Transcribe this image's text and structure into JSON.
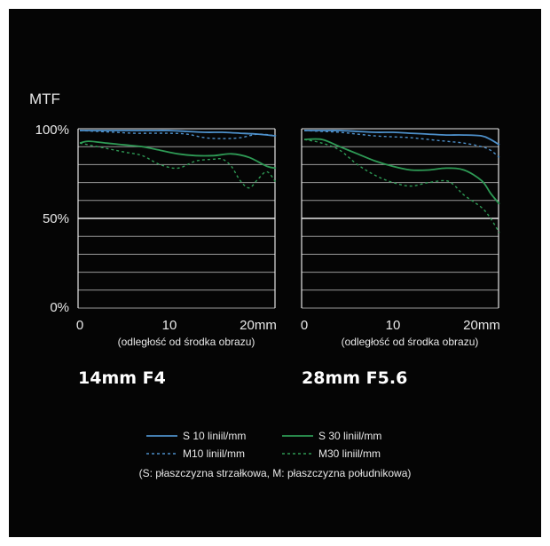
{
  "chart_data": [
    {
      "type": "line",
      "title": "14mm F4",
      "ylabel": "MTF",
      "xlabel": "(odległość od środka obrazu)",
      "xlim": [
        0,
        22
      ],
      "ylim": [
        0,
        100
      ],
      "x_ticks": [
        "0",
        "10",
        "20mm"
      ],
      "y_ticks": [
        "100%",
        "50%",
        "0%"
      ],
      "grid": true,
      "series": [
        {
          "name": "S 10 liniil/mm",
          "color": "#4d8fc9",
          "dash": false,
          "x": [
            0,
            2,
            4,
            6,
            8,
            10,
            12,
            14,
            16,
            18,
            20,
            22
          ],
          "y": [
            99,
            99,
            99,
            99,
            99,
            99,
            98.5,
            98,
            98,
            97.5,
            97,
            96
          ]
        },
        {
          "name": "M10 liniil/mm",
          "color": "#4d8fc9",
          "dash": true,
          "x": [
            0,
            2,
            4,
            6,
            8,
            10,
            12,
            14,
            16,
            18,
            20,
            22
          ],
          "y": [
            99,
            98.5,
            98,
            97.5,
            97.5,
            97.5,
            97,
            95,
            94.5,
            95,
            97,
            96
          ]
        },
        {
          "name": "S 30 liniil/mm",
          "color": "#2e9a55",
          "dash": false,
          "x": [
            0,
            1,
            3,
            5,
            7,
            9,
            11,
            13,
            15,
            17,
            19,
            21,
            22
          ],
          "y": [
            92,
            93,
            92,
            91,
            90,
            88,
            86,
            85,
            85,
            86,
            84,
            79,
            78
          ]
        },
        {
          "name": "M30 liniil/mm",
          "color": "#2e9a55",
          "dash": true,
          "x": [
            0,
            1,
            3,
            5,
            7,
            9,
            11,
            13,
            15,
            16,
            17,
            18,
            19,
            20,
            21,
            22
          ],
          "y": [
            92,
            91,
            89,
            87,
            85,
            80,
            78,
            82,
            83,
            83,
            79,
            71,
            67,
            72,
            76,
            70
          ]
        }
      ]
    },
    {
      "type": "line",
      "title": "28mm F5.6",
      "xlabel": "(odległość od środka obrazu)",
      "xlim": [
        0,
        22
      ],
      "ylim": [
        0,
        100
      ],
      "x_ticks": [
        "0",
        "10",
        "20mm"
      ],
      "grid": true,
      "series": [
        {
          "name": "S 10 liniil/mm",
          "color": "#4d8fc9",
          "dash": false,
          "x": [
            0,
            2,
            4,
            6,
            8,
            10,
            12,
            14,
            16,
            18,
            20,
            21,
            22
          ],
          "y": [
            99,
            99,
            99,
            98.5,
            98,
            98,
            97.5,
            97,
            96.5,
            96.5,
            96,
            94,
            91
          ]
        },
        {
          "name": "M10 liniil/mm",
          "color": "#4d8fc9",
          "dash": true,
          "x": [
            0,
            2,
            4,
            6,
            8,
            10,
            12,
            14,
            16,
            18,
            20,
            21,
            22
          ],
          "y": [
            99,
            98.5,
            98,
            97,
            96,
            95.5,
            95,
            94,
            93,
            92,
            90,
            88,
            84
          ]
        },
        {
          "name": "S 30 liniil/mm",
          "color": "#2e9a55",
          "dash": false,
          "x": [
            0,
            2,
            4,
            6,
            8,
            10,
            12,
            14,
            16,
            18,
            20,
            21,
            22
          ],
          "y": [
            94,
            94,
            90,
            86,
            82,
            79,
            77,
            77,
            78,
            77,
            71,
            64,
            58
          ]
        },
        {
          "name": "M30 liniil/mm",
          "color": "#2e9a55",
          "dash": true,
          "x": [
            0,
            2,
            4,
            6,
            8,
            10,
            12,
            14,
            16,
            17,
            18,
            20,
            21,
            22
          ],
          "y": [
            94,
            92,
            88,
            80,
            74,
            70,
            68,
            70,
            71,
            68,
            63,
            56,
            50,
            42
          ]
        }
      ]
    }
  ],
  "legend": {
    "items": [
      {
        "label": "S 10 liniil/mm",
        "color": "#4d8fc9",
        "dash": false
      },
      {
        "label": "S 30 liniil/mm",
        "color": "#2e9a55",
        "dash": false
      },
      {
        "label": "M10 liniil/mm",
        "color": "#4d8fc9",
        "dash": true
      },
      {
        "label": "M30 liniil/mm",
        "color": "#2e9a55",
        "dash": true
      }
    ],
    "note": "(S: płaszczyzna strzałkowa, M: płaszczyzna południkowa)"
  },
  "colors": {
    "background": "#050505",
    "grid": "#bbbbbb",
    "text": "#e8e8e8"
  }
}
